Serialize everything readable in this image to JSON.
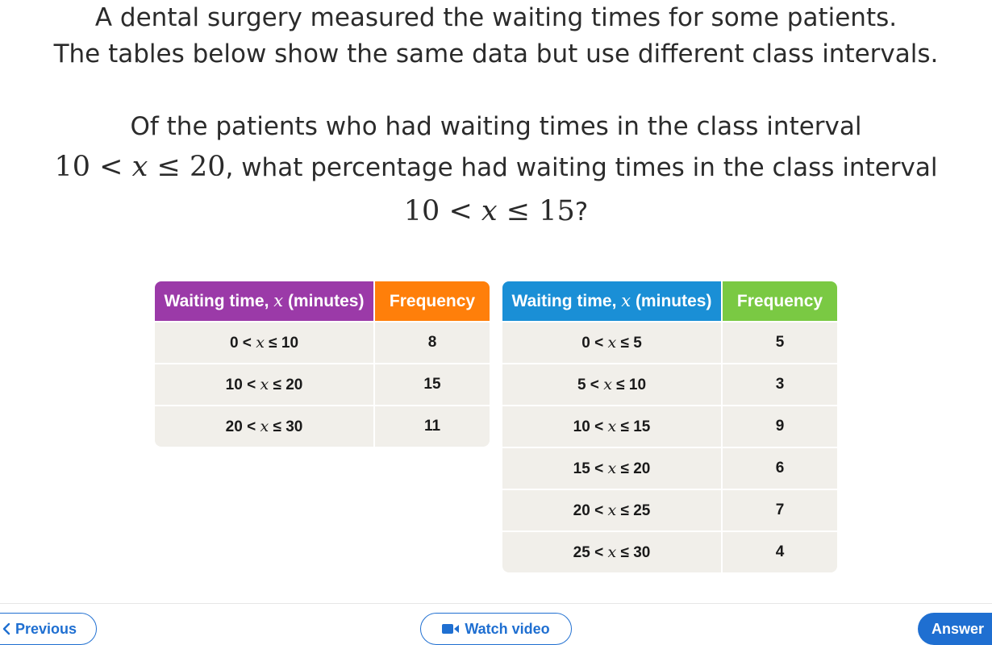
{
  "question": {
    "line1": "A dental surgery measured the waiting times for some patients.",
    "line2": "The tables below show the same data but use different class intervals.",
    "line3": "Of the patients who had waiting times in the class interval",
    "line4_math_left": "10",
    "line4_math_x": "x",
    "line4_math_right": "20",
    "line4_text": ", what percentage had waiting times in the class interval",
    "line5_math_left": "10",
    "line5_math_x": "x",
    "line5_math_right": "15",
    "line5_text": "?"
  },
  "table1": {
    "header_time_prefix": "Waiting time, ",
    "header_time_var": "x",
    "header_time_suffix": " (minutes)",
    "header_freq": "Frequency",
    "colors": {
      "time_header": "#9b3aa8",
      "freq_header": "#ff7f0a"
    },
    "rows": [
      {
        "lo": "0",
        "hi": "10",
        "freq": "8"
      },
      {
        "lo": "10",
        "hi": "20",
        "freq": "15"
      },
      {
        "lo": "20",
        "hi": "30",
        "freq": "11"
      }
    ]
  },
  "table2": {
    "header_time_prefix": "Waiting time, ",
    "header_time_var": "x",
    "header_time_suffix": " (minutes)",
    "header_freq": "Frequency",
    "colors": {
      "time_header": "#1a8fd6",
      "freq_header": "#7ac943"
    },
    "rows": [
      {
        "lo": "0",
        "hi": "5",
        "freq": "5"
      },
      {
        "lo": "5",
        "hi": "10",
        "freq": "3"
      },
      {
        "lo": "10",
        "hi": "15",
        "freq": "9"
      },
      {
        "lo": "15",
        "hi": "20",
        "freq": "6"
      },
      {
        "lo": "20",
        "hi": "25",
        "freq": "7"
      },
      {
        "lo": "25",
        "hi": "30",
        "freq": "4"
      }
    ]
  },
  "footer": {
    "previous_label": "Previous",
    "previous_icon": "chevron-left-icon",
    "watch_label": "Watch video",
    "watch_icon": "video-camera-icon",
    "answer_label": "Answer",
    "accent": "#1f6fd1"
  }
}
